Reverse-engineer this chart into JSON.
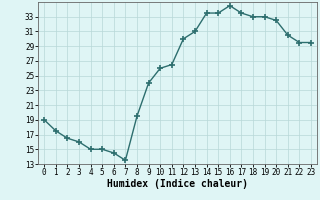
{
  "x": [
    0,
    1,
    2,
    3,
    4,
    5,
    6,
    7,
    8,
    9,
    10,
    11,
    12,
    13,
    14,
    15,
    16,
    17,
    18,
    19,
    20,
    21,
    22,
    23
  ],
  "y": [
    19,
    17.5,
    16.5,
    16,
    15,
    15,
    14.5,
    13.5,
    19.5,
    24,
    26,
    26.5,
    30,
    31,
    33.5,
    33.5,
    34.5,
    33.5,
    33,
    33,
    32.5,
    30.5,
    29.5,
    29.5
  ],
  "line_color": "#2d6e6e",
  "marker": "+",
  "marker_size": 4,
  "background_color": "#dff5f5",
  "grid_color": "#b8d8d8",
  "xlabel": "Humidex (Indice chaleur)",
  "xlim": [
    -0.5,
    23.5
  ],
  "ylim": [
    13,
    35
  ],
  "yticks": [
    13,
    15,
    17,
    19,
    21,
    23,
    25,
    27,
    29,
    31,
    33
  ],
  "xticks": [
    0,
    1,
    2,
    3,
    4,
    5,
    6,
    7,
    8,
    9,
    10,
    11,
    12,
    13,
    14,
    15,
    16,
    17,
    18,
    19,
    20,
    21,
    22,
    23
  ],
  "tick_label_fontsize": 5.5,
  "xlabel_fontsize": 7,
  "line_width": 1.0,
  "marker_color": "#2d6e6e"
}
